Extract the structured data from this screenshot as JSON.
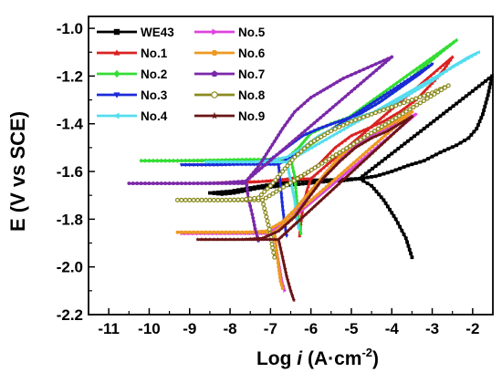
{
  "chart_data": {
    "type": "line",
    "xlabel_main": "Log ",
    "xlabel_i": "i",
    "xlabel_unit": " (A·cm",
    "xlabel_sup": "-2",
    "xlabel_close": ")",
    "ylabel": "E (V vs SCE)",
    "xlim": [
      -11.5,
      -1.5
    ],
    "ylim": [
      -2.2,
      -0.95
    ],
    "xticks": [
      -11,
      -10,
      -9,
      -8,
      -7,
      -6,
      -5,
      -4,
      -3,
      -2
    ],
    "yticks": [
      -2.2,
      -2.0,
      -1.8,
      -1.6,
      -1.4,
      -1.2,
      -1.0
    ],
    "ytick_labels": [
      "-2.2",
      "-2.0",
      "-1.8",
      "-1.6",
      "-1.4",
      "-1.2",
      "-1.0"
    ],
    "series": [
      {
        "name": "WE43",
        "color": "#000000",
        "marker": "square",
        "points": [
          [
            -4.8,
            -1.63
          ],
          [
            -5.2,
            -1.638
          ],
          [
            -5.5,
            -1.64
          ],
          [
            -5.8,
            -1.645
          ],
          [
            -6.1,
            -1.65
          ],
          [
            -6.4,
            -1.655
          ],
          [
            -6.7,
            -1.66
          ],
          [
            -7.0,
            -1.665
          ],
          [
            -7.3,
            -1.67
          ],
          [
            -7.6,
            -1.68
          ],
          [
            -7.9,
            -1.69
          ],
          [
            -8.2,
            -1.695
          ],
          [
            -8.5,
            -1.69
          ],
          [
            -8.0,
            -1.683
          ],
          [
            -7.2,
            -1.66
          ],
          [
            -6.3,
            -1.638
          ],
          [
            -5.4,
            -1.635
          ],
          [
            -4.8,
            -1.63
          ],
          [
            -4.4,
            -1.62
          ],
          [
            -4.0,
            -1.6
          ],
          [
            -3.6,
            -1.575
          ],
          [
            -3.2,
            -1.555
          ],
          [
            -2.8,
            -1.52
          ],
          [
            -2.4,
            -1.49
          ],
          [
            -2.1,
            -1.46
          ],
          [
            -1.9,
            -1.42
          ],
          [
            -1.75,
            -1.36
          ],
          [
            -1.62,
            -1.28
          ],
          [
            -1.52,
            -1.2
          ],
          [
            -4.8,
            -1.63
          ],
          [
            -4.5,
            -1.66
          ],
          [
            -4.2,
            -1.72
          ],
          [
            -3.9,
            -1.8
          ],
          [
            -3.65,
            -1.88
          ],
          [
            -3.5,
            -1.96
          ]
        ]
      },
      {
        "name": "No.1",
        "color": "#d92222",
        "marker": "triangle",
        "points": [
          [
            -6.0,
            -1.63
          ],
          [
            -6.5,
            -1.635
          ],
          [
            -7.0,
            -1.64
          ],
          [
            -7.5,
            -1.645
          ],
          [
            -8.0,
            -1.645
          ],
          [
            -8.5,
            -1.65
          ],
          [
            -8.0,
            -1.646
          ],
          [
            -7.2,
            -1.642
          ],
          [
            -6.6,
            -1.632
          ],
          [
            -6.2,
            -1.62
          ],
          [
            -5.8,
            -1.57
          ],
          [
            -5.4,
            -1.5
          ],
          [
            -5.0,
            -1.45
          ],
          [
            -4.6,
            -1.42
          ],
          [
            -4.2,
            -1.39
          ],
          [
            -3.8,
            -1.35
          ],
          [
            -3.4,
            -1.3
          ],
          [
            -3.0,
            -1.23
          ],
          [
            -2.7,
            -1.17
          ],
          [
            -2.5,
            -1.12
          ],
          [
            -6.0,
            -1.63
          ],
          [
            -6.1,
            -1.68
          ],
          [
            -6.2,
            -1.75
          ],
          [
            -6.25,
            -1.82
          ],
          [
            -6.28,
            -1.87
          ]
        ]
      },
      {
        "name": "No.2",
        "color": "#33dd33",
        "marker": "diamond",
        "points": [
          [
            -6.5,
            -1.548
          ],
          [
            -7.2,
            -1.55
          ],
          [
            -8.0,
            -1.555
          ],
          [
            -8.8,
            -1.555
          ],
          [
            -9.6,
            -1.555
          ],
          [
            -10.2,
            -1.555
          ],
          [
            -9.4,
            -1.555
          ],
          [
            -8.4,
            -1.553
          ],
          [
            -7.6,
            -1.55
          ],
          [
            -7.0,
            -1.55
          ],
          [
            -6.6,
            -1.545
          ],
          [
            -6.3,
            -1.5
          ],
          [
            -6.0,
            -1.44
          ],
          [
            -5.5,
            -1.4
          ],
          [
            -5.0,
            -1.37
          ],
          [
            -4.4,
            -1.32
          ],
          [
            -3.8,
            -1.25
          ],
          [
            -3.2,
            -1.16
          ],
          [
            -2.7,
            -1.09
          ],
          [
            -2.4,
            -1.05
          ],
          [
            -6.5,
            -1.548
          ],
          [
            -6.4,
            -1.62
          ],
          [
            -6.35,
            -1.72
          ],
          [
            -6.3,
            -1.8
          ],
          [
            -6.25,
            -1.86
          ]
        ]
      },
      {
        "name": "No.3",
        "color": "#1b2bd8",
        "marker": "triangle-down",
        "points": [
          [
            -6.8,
            -1.57
          ],
          [
            -7.3,
            -1.57
          ],
          [
            -7.8,
            -1.57
          ],
          [
            -8.3,
            -1.572
          ],
          [
            -8.8,
            -1.572
          ],
          [
            -9.2,
            -1.572
          ],
          [
            -8.6,
            -1.572
          ],
          [
            -7.9,
            -1.57
          ],
          [
            -7.4,
            -1.565
          ],
          [
            -7.0,
            -1.55
          ],
          [
            -6.6,
            -1.5
          ],
          [
            -6.2,
            -1.45
          ],
          [
            -5.8,
            -1.42
          ],
          [
            -5.3,
            -1.39
          ],
          [
            -4.8,
            -1.36
          ],
          [
            -4.3,
            -1.31
          ],
          [
            -3.8,
            -1.25
          ],
          [
            -3.3,
            -1.19
          ],
          [
            -3.0,
            -1.15
          ],
          [
            -6.8,
            -1.57
          ],
          [
            -6.75,
            -1.66
          ],
          [
            -6.7,
            -1.75
          ],
          [
            -6.65,
            -1.82
          ],
          [
            -6.6,
            -1.87
          ]
        ]
      },
      {
        "name": "No.4",
        "color": "#55ddee",
        "marker": "triangle-left",
        "points": [
          [
            -6.6,
            -1.56
          ],
          [
            -7.0,
            -1.56
          ],
          [
            -7.4,
            -1.56
          ],
          [
            -7.8,
            -1.56
          ],
          [
            -8.2,
            -1.56
          ],
          [
            -8.6,
            -1.56
          ],
          [
            -8.1,
            -1.56
          ],
          [
            -7.5,
            -1.56
          ],
          [
            -7.0,
            -1.555
          ],
          [
            -6.6,
            -1.54
          ],
          [
            -6.2,
            -1.5
          ],
          [
            -5.8,
            -1.45
          ],
          [
            -5.3,
            -1.41
          ],
          [
            -4.8,
            -1.37
          ],
          [
            -4.2,
            -1.34
          ],
          [
            -3.6,
            -1.28
          ],
          [
            -3.0,
            -1.22
          ],
          [
            -2.5,
            -1.16
          ],
          [
            -2.1,
            -1.12
          ],
          [
            -1.85,
            -1.1
          ],
          [
            -6.6,
            -1.56
          ],
          [
            -6.5,
            -1.64
          ],
          [
            -6.4,
            -1.72
          ],
          [
            -6.35,
            -1.8
          ],
          [
            -6.3,
            -1.84
          ]
        ]
      },
      {
        "name": "No.5",
        "color": "#dd44dd",
        "marker": "triangle-right",
        "points": [
          [
            -6.9,
            -1.86
          ],
          [
            -7.3,
            -1.86
          ],
          [
            -7.7,
            -1.86
          ],
          [
            -8.1,
            -1.86
          ],
          [
            -8.5,
            -1.86
          ],
          [
            -8.9,
            -1.86
          ],
          [
            -9.2,
            -1.86
          ],
          [
            -8.7,
            -1.86
          ],
          [
            -8.1,
            -1.86
          ],
          [
            -7.5,
            -1.858
          ],
          [
            -7.0,
            -1.85
          ],
          [
            -6.6,
            -1.81
          ],
          [
            -6.3,
            -1.76
          ],
          [
            -6.0,
            -1.69
          ],
          [
            -5.6,
            -1.6
          ],
          [
            -5.2,
            -1.53
          ],
          [
            -4.8,
            -1.48
          ],
          [
            -4.4,
            -1.44
          ],
          [
            -4.0,
            -1.41
          ],
          [
            -3.7,
            -1.38
          ],
          [
            -3.4,
            -1.36
          ],
          [
            -6.9,
            -1.86
          ],
          [
            -6.85,
            -1.93
          ],
          [
            -6.78,
            -2.0
          ],
          [
            -6.72,
            -2.06
          ],
          [
            -6.65,
            -2.1
          ]
        ]
      },
      {
        "name": "No.6",
        "color": "#ee9922",
        "marker": "hexagon",
        "points": [
          [
            -6.9,
            -1.855
          ],
          [
            -7.3,
            -1.855
          ],
          [
            -7.7,
            -1.855
          ],
          [
            -8.1,
            -1.855
          ],
          [
            -8.5,
            -1.855
          ],
          [
            -8.9,
            -1.855
          ],
          [
            -9.3,
            -1.855
          ],
          [
            -8.8,
            -1.855
          ],
          [
            -8.2,
            -1.855
          ],
          [
            -7.6,
            -1.855
          ],
          [
            -7.1,
            -1.85
          ],
          [
            -6.7,
            -1.81
          ],
          [
            -6.4,
            -1.76
          ],
          [
            -6.1,
            -1.7
          ],
          [
            -5.7,
            -1.62
          ],
          [
            -5.3,
            -1.54
          ],
          [
            -4.9,
            -1.48
          ],
          [
            -4.5,
            -1.44
          ],
          [
            -4.1,
            -1.41
          ],
          [
            -3.8,
            -1.38
          ],
          [
            -3.5,
            -1.35
          ],
          [
            -6.9,
            -1.855
          ],
          [
            -6.85,
            -1.93
          ],
          [
            -6.8,
            -2.0
          ],
          [
            -6.75,
            -2.06
          ],
          [
            -6.7,
            -2.09
          ]
        ]
      },
      {
        "name": "No.7",
        "color": "#7a28a8",
        "marker": "pentagon",
        "points": [
          [
            -7.6,
            -1.65
          ],
          [
            -8.2,
            -1.65
          ],
          [
            -8.8,
            -1.65
          ],
          [
            -9.4,
            -1.65
          ],
          [
            -10.0,
            -1.65
          ],
          [
            -10.5,
            -1.65
          ],
          [
            -9.8,
            -1.65
          ],
          [
            -9.0,
            -1.65
          ],
          [
            -8.2,
            -1.648
          ],
          [
            -7.6,
            -1.64
          ],
          [
            -7.3,
            -1.58
          ],
          [
            -7.0,
            -1.5
          ],
          [
            -6.7,
            -1.42
          ],
          [
            -6.4,
            -1.35
          ],
          [
            -6.0,
            -1.29
          ],
          [
            -5.6,
            -1.25
          ],
          [
            -5.2,
            -1.21
          ],
          [
            -4.8,
            -1.18
          ],
          [
            -4.4,
            -1.15
          ],
          [
            -4.0,
            -1.12
          ],
          [
            -7.6,
            -1.64
          ],
          [
            -7.55,
            -1.71
          ],
          [
            -7.45,
            -1.78
          ],
          [
            -7.38,
            -1.84
          ],
          [
            -7.3,
            -1.89
          ]
        ]
      },
      {
        "name": "No.8",
        "color": "#8a8a20",
        "marker": "circle-open",
        "points": [
          [
            -7.2,
            -1.72
          ],
          [
            -7.6,
            -1.72
          ],
          [
            -8.0,
            -1.72
          ],
          [
            -8.4,
            -1.72
          ],
          [
            -8.8,
            -1.72
          ],
          [
            -9.3,
            -1.72
          ],
          [
            -8.8,
            -1.72
          ],
          [
            -8.2,
            -1.72
          ],
          [
            -7.7,
            -1.718
          ],
          [
            -7.3,
            -1.71
          ],
          [
            -7.0,
            -1.66
          ],
          [
            -6.7,
            -1.6
          ],
          [
            -6.4,
            -1.54
          ],
          [
            -6.0,
            -1.48
          ],
          [
            -5.5,
            -1.43
          ],
          [
            -5.0,
            -1.39
          ],
          [
            -4.5,
            -1.36
          ],
          [
            -4.0,
            -1.33
          ],
          [
            -3.5,
            -1.3
          ],
          [
            -3.0,
            -1.27
          ],
          [
            -2.6,
            -1.24
          ],
          [
            -7.2,
            -1.72
          ],
          [
            -7.1,
            -1.79
          ],
          [
            -7.0,
            -1.86
          ],
          [
            -6.95,
            -1.92
          ],
          [
            -6.9,
            -1.96
          ]
        ]
      },
      {
        "name": "No.9",
        "color": "#6a1515",
        "marker": "star",
        "points": [
          [
            -6.8,
            -1.885
          ],
          [
            -7.3,
            -1.885
          ],
          [
            -7.8,
            -1.885
          ],
          [
            -8.3,
            -1.885
          ],
          [
            -8.8,
            -1.885
          ],
          [
            -8.3,
            -1.885
          ],
          [
            -7.7,
            -1.885
          ],
          [
            -7.2,
            -1.88
          ],
          [
            -6.8,
            -1.85
          ],
          [
            -6.4,
            -1.79
          ],
          [
            -6.1,
            -1.72
          ],
          [
            -5.7,
            -1.63
          ],
          [
            -5.3,
            -1.56
          ],
          [
            -4.9,
            -1.5
          ],
          [
            -4.5,
            -1.46
          ],
          [
            -4.1,
            -1.43
          ],
          [
            -3.8,
            -1.4
          ],
          [
            -3.5,
            -1.37
          ],
          [
            -6.8,
            -1.885
          ],
          [
            -6.7,
            -1.96
          ],
          [
            -6.6,
            -2.04
          ],
          [
            -6.5,
            -2.1
          ],
          [
            -6.42,
            -2.14
          ]
        ]
      }
    ],
    "legend_position": "top-left"
  }
}
